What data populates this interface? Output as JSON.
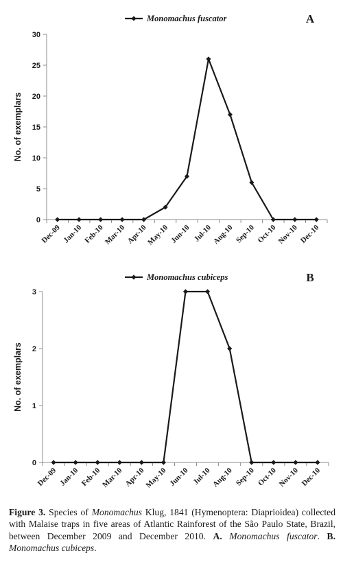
{
  "chart_data": [
    {
      "type": "line",
      "panel_letter": "A",
      "categories": [
        "Dec-09",
        "Jan-10",
        "Feb-10",
        "Mar-10",
        "Apr-10",
        "May-10",
        "Jun-10",
        "Jul-10",
        "Aug-10",
        "Sep-10",
        "Oct-10",
        "Nov-10",
        "Dec-10"
      ],
      "series": [
        {
          "name": "Monomachus fuscator",
          "values": [
            0,
            0,
            0,
            0,
            0,
            2,
            7,
            26,
            17,
            6,
            0,
            0,
            0
          ]
        }
      ],
      "ylabel": "No. of exemplars",
      "ylim": [
        0,
        30
      ],
      "yticks": [
        0,
        5,
        10,
        15,
        20,
        25,
        30
      ],
      "legend_position": "top-center",
      "grid": false
    },
    {
      "type": "line",
      "panel_letter": "B",
      "categories": [
        "Dec-09",
        "Jan-10",
        "Feb-10",
        "Mar-10",
        "Apr-10",
        "May-10",
        "Jun-10",
        "Jul-10",
        "Aug-10",
        "Sep-10",
        "Oct-10",
        "Nov-10",
        "Dec-10"
      ],
      "series": [
        {
          "name": "Monomachus cubiceps",
          "values": [
            0,
            0,
            0,
            0,
            0,
            0,
            3,
            3,
            2,
            0,
            0,
            0,
            0
          ]
        }
      ],
      "ylabel": "No. of exemplars",
      "ylim": [
        0,
        3
      ],
      "yticks": [
        0,
        1,
        2,
        3
      ],
      "legend_position": "top-center",
      "grid": false
    }
  ],
  "caption": {
    "label": "Figure 3.",
    "t1": " Species of ",
    "genus1": "Monomachus",
    "t2": " Klug, 1841 (Hymenoptera: Diaprioidea) collected with Malaise traps in five areas of Atlantic Rainforest of the São Paulo State, Brazil, between December 2009 and December 2010. ",
    "refA": "A.",
    "speciesA": " Monomachus fuscator",
    "t3": ". ",
    "refB": "B.",
    "speciesB": " Monomachus cubiceps",
    "t4": "."
  }
}
